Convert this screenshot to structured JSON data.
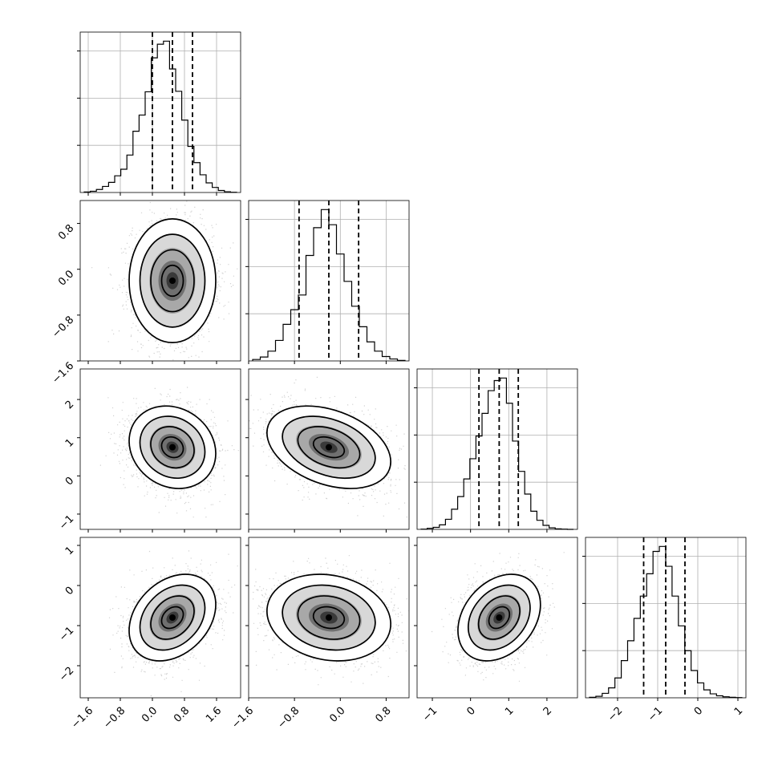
{
  "chart_data": {
    "type": "corner",
    "title": "",
    "n_params": 4,
    "grid": true,
    "parameters": [
      {
        "index": 0,
        "mean": 0.5,
        "sd": 0.5,
        "range": [
          -1.8,
          2.2
        ],
        "ticks": [
          -1.6,
          -0.8,
          0.0,
          0.8,
          1.6
        ],
        "tick_labels": [
          "−1.6",
          "−0.8",
          "0.0",
          "0.8",
          "1.6"
        ],
        "quantiles": [
          0.0,
          0.5,
          1.0
        ],
        "histogram": [
          0.1,
          0.25,
          0.6,
          1.2,
          2.0,
          3.3,
          4.6,
          7.4,
          12.1,
          15.3,
          19.9,
          26.6,
          29.3,
          29.9,
          24.4,
          20.0,
          14.3,
          9.1,
          5.9,
          3.5,
          1.9,
          1.0,
          0.4,
          0.15,
          0.05
        ]
      },
      {
        "index": 1,
        "mean": -0.2,
        "sd": 0.5,
        "range": [
          -1.6,
          1.2
        ],
        "ticks": [
          -1.6,
          -0.8,
          0.0,
          0.8
        ],
        "tick_labels": [
          "−1.6",
          "−0.8",
          "0.0",
          "0.8"
        ],
        "quantiles": [
          -0.72,
          -0.2,
          0.32
        ],
        "histogram": [
          0.3,
          0.8,
          2.0,
          4.2,
          7.5,
          10.5,
          13.5,
          21.6,
          27.3,
          31.0,
          27.9,
          21.9,
          16.3,
          11.2,
          7.0,
          3.9,
          2.0,
          0.9,
          0.4,
          0.1
        ]
      },
      {
        "index": 2,
        "mean": 0.75,
        "sd": 0.5,
        "range": [
          -1.4,
          2.8
        ],
        "ticks": [
          -1,
          0,
          1,
          2
        ],
        "tick_labels": [
          "−1",
          "0",
          "1",
          "2"
        ],
        "quantiles": [
          0.22,
          0.75,
          1.25
        ],
        "histogram": [
          0.05,
          0.2,
          0.4,
          0.9,
          2.0,
          4.0,
          6.5,
          10.0,
          14.0,
          18.5,
          23.0,
          27.5,
          29.5,
          30.0,
          25.0,
          17.5,
          11.5,
          7.0,
          3.6,
          1.8,
          0.8,
          0.3,
          0.1,
          0.05,
          0.0
        ]
      },
      {
        "index": 3,
        "mean": -0.8,
        "sd": 0.5,
        "range": [
          -2.8,
          1.2
        ],
        "ticks": [
          -2,
          -1,
          0,
          1
        ],
        "tick_labels": [
          "−2",
          "−1",
          "0",
          "1"
        ],
        "quantiles": [
          -1.35,
          -0.8,
          -0.32
        ],
        "histogram": [
          0.1,
          0.3,
          0.9,
          2.0,
          4.0,
          7.5,
          11.5,
          16.0,
          20.5,
          25.0,
          29.5,
          30.5,
          26.5,
          20.5,
          14.5,
          9.5,
          5.5,
          3.0,
          1.6,
          0.8,
          0.4,
          0.2,
          0.1,
          0.05
        ]
      }
    ],
    "y_tick_labels_left": {
      "row1": [
        "0.8",
        "0.0",
        "−0.8",
        "−1.6"
      ],
      "row2": [
        "2",
        "1",
        "0",
        "−1"
      ],
      "row3": [
        "1",
        "0",
        "−1",
        "−2"
      ]
    },
    "pair_correlations": {
      "1-0": 0.0,
      "2-0": -0.15,
      "2-1": -0.35,
      "3-0": 0.3,
      "3-1": -0.15,
      "3-2": 0.3
    },
    "contour_levels_sigma": [
      0.5,
      1.0,
      1.5,
      2.0
    ]
  }
}
